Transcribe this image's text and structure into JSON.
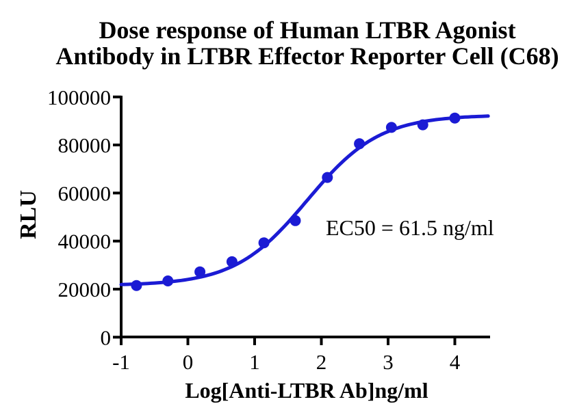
{
  "page": {
    "background": "#ffffff"
  },
  "title": {
    "line1": "Dose response of Human LTBR Agonist",
    "line2": "Antibody in LTBR Effector Reporter Cell (C68)"
  },
  "colors": {
    "accent_blue": "#1b1bd4",
    "axis": "#000000",
    "text": "#000000"
  },
  "chart_data": {
    "type": "scatter",
    "title": "Dose response of Human LTBR Agonist Antibody in LTBR Effector Reporter Cell (C68)",
    "xlabel": "Log[Anti-LTBR Ab]ng/ml",
    "ylabel": "RLU",
    "annotation": "EC50 = 61.5 ng/ml",
    "grid": false,
    "legend": false,
    "xlim": [
      -1,
      4.5
    ],
    "ylim": [
      0,
      100000
    ],
    "x_ticks": [
      "-1",
      "0",
      "1",
      "2",
      "3",
      "4"
    ],
    "x_tick_values": [
      -1,
      0,
      1,
      2,
      3,
      4
    ],
    "y_ticks": [
      "0",
      "20000",
      "40000",
      "60000",
      "80000",
      "100000"
    ],
    "y_tick_values": [
      0,
      20000,
      40000,
      60000,
      80000,
      100000
    ],
    "series": [
      {
        "name": "Anti-LTBR Ab",
        "marker": "circle",
        "color": "#1b1bd4",
        "x": [
          -0.77,
          -0.3,
          0.18,
          0.66,
          1.14,
          1.61,
          2.09,
          2.57,
          3.05,
          3.52,
          4.0
        ],
        "y": [
          21500,
          23400,
          27200,
          31400,
          39300,
          48500,
          66500,
          80500,
          87300,
          88400,
          91200
        ]
      }
    ],
    "fit_curve": {
      "model": "4PL",
      "bottom": 21500,
      "top": 92500,
      "log_ec50": 1.789,
      "hill": 0.8,
      "ec50_ng_ml": 61.5,
      "color": "#1b1bd4"
    }
  }
}
